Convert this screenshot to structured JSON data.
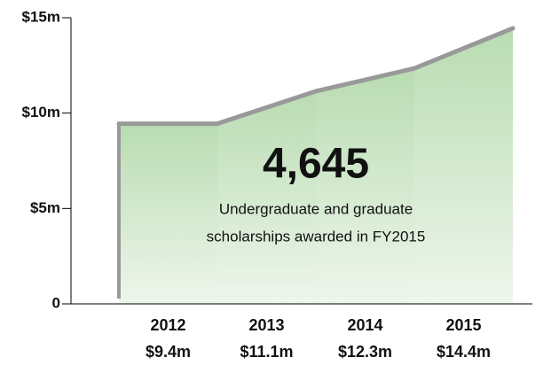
{
  "chart_data": {
    "type": "area",
    "categories": [
      "2012",
      "2013",
      "2014",
      "2015"
    ],
    "values": [
      9.4,
      11.1,
      12.3,
      14.4
    ],
    "value_labels": [
      "$9.4m",
      "$11.1m",
      "$12.3m",
      "$14.4m"
    ],
    "color": "#b9dcb2",
    "line_color": "#999999",
    "ylim": [
      0,
      15
    ],
    "yticks": [
      0,
      {
        "value": 5,
        "label": "$5m"
      },
      {
        "value": 10,
        "label": "$10m"
      },
      {
        "value": 15,
        "label": "$15m"
      }
    ],
    "annotation": {
      "number": "4,645",
      "text": [
        "Undergraduate and graduate",
        "scholarships awarded in FY2015"
      ]
    }
  }
}
